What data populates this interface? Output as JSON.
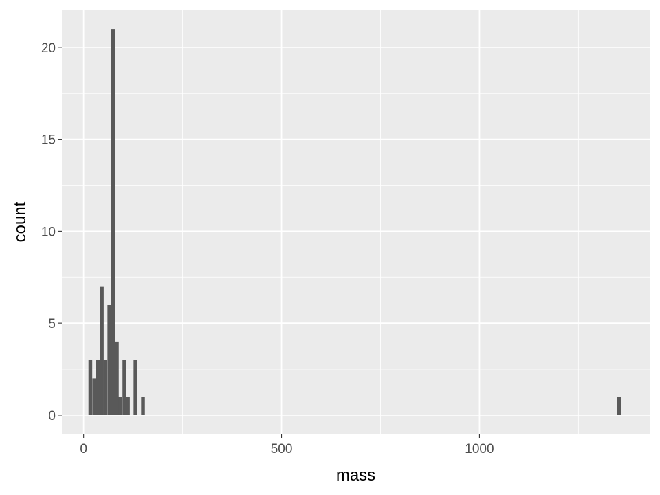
{
  "chart_data": {
    "type": "bar",
    "subtype": "histogram",
    "title": "",
    "xlabel": "mass",
    "ylabel": "count",
    "xlim": [
      -55,
      1430
    ],
    "ylim": [
      -1.05,
      22.05
    ],
    "x_ticks": [
      0,
      500,
      1000
    ],
    "y_ticks": [
      0,
      5,
      10,
      15,
      20
    ],
    "bin_width": 9.5,
    "bins": [
      {
        "x": 17,
        "count": 3
      },
      {
        "x": 27,
        "count": 2
      },
      {
        "x": 36,
        "count": 3
      },
      {
        "x": 46,
        "count": 7
      },
      {
        "x": 55,
        "count": 3
      },
      {
        "x": 65,
        "count": 6
      },
      {
        "x": 74,
        "count": 21
      },
      {
        "x": 84,
        "count": 4
      },
      {
        "x": 93,
        "count": 1
      },
      {
        "x": 103,
        "count": 3
      },
      {
        "x": 112,
        "count": 1
      },
      {
        "x": 131,
        "count": 3
      },
      {
        "x": 150,
        "count": 1
      },
      {
        "x": 1353,
        "count": 1
      }
    ],
    "colors": {
      "panel_background": "#ebebeb",
      "grid_major": "#ffffff",
      "bar_fill": "#595959",
      "tick_text": "#4d4d4d",
      "axis_ticks": "#333333"
    },
    "grid": true,
    "legend": "none"
  }
}
